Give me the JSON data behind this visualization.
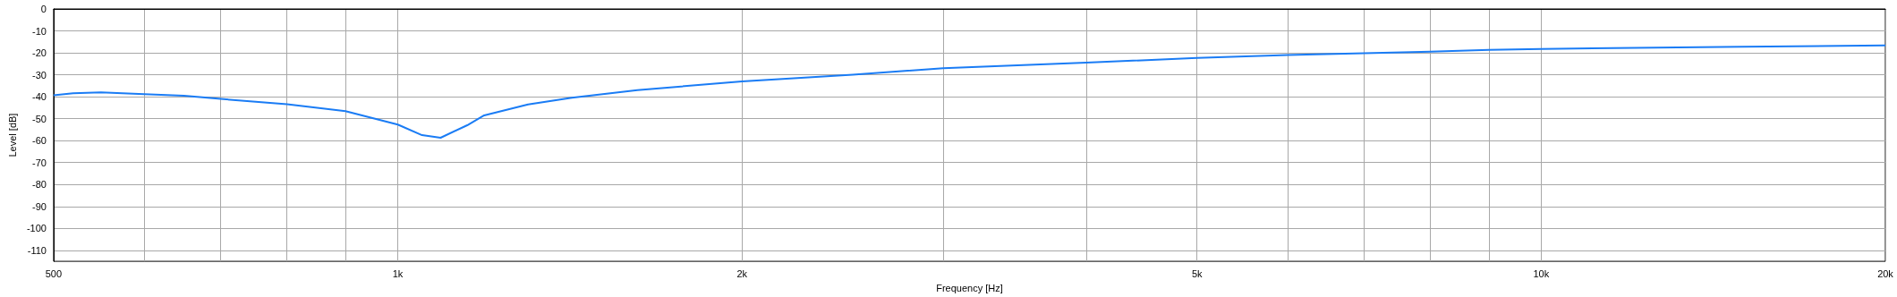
{
  "chart_data": {
    "type": "line",
    "xlabel": "Frequency [Hz]",
    "ylabel": "Level [dB]",
    "log": "x",
    "grid": true,
    "marker": "none",
    "line_style": "solid",
    "xlim": [
      500,
      20000
    ],
    "ylim": [
      -115,
      0
    ],
    "xticks": [
      {
        "value": 500,
        "label": "500"
      },
      {
        "value": 600,
        "label": null
      },
      {
        "value": 700,
        "label": null
      },
      {
        "value": 800,
        "label": null
      },
      {
        "value": 900,
        "label": null
      },
      {
        "value": 1000,
        "label": "1k"
      },
      {
        "value": 2000,
        "label": "2k"
      },
      {
        "value": 3000,
        "label": null
      },
      {
        "value": 4000,
        "label": null
      },
      {
        "value": 5000,
        "label": "5k"
      },
      {
        "value": 6000,
        "label": null
      },
      {
        "value": 7000,
        "label": null
      },
      {
        "value": 8000,
        "label": null
      },
      {
        "value": 9000,
        "label": null
      },
      {
        "value": 10000,
        "label": "10k"
      },
      {
        "value": 20000,
        "label": "20k"
      }
    ],
    "yticks": [
      0,
      -10,
      -20,
      -30,
      -40,
      -50,
      -60,
      -70,
      -80,
      -90,
      -100,
      -110
    ],
    "series": [
      {
        "color": "#1a7cf5",
        "x": [
          500,
          520,
          550,
          600,
          650,
          700,
          800,
          900,
          1000,
          1050,
          1090,
          1150,
          1190,
          1300,
          1420,
          1620,
          2000,
          2500,
          3000,
          4000,
          5000,
          6000,
          7000,
          8000,
          9000,
          10000,
          15000,
          20000
        ],
        "values": [
          -39.3,
          -38.4,
          -38,
          -38.8,
          -39.5,
          -41,
          -43.4,
          -46.6,
          -52.7,
          -57.5,
          -58.7,
          -53,
          -48.5,
          -43.5,
          -40.5,
          -37,
          -33,
          -30,
          -27,
          -24.5,
          -22.3,
          -21,
          -20.2,
          -19.5,
          -18.7,
          -18.2,
          -17.2,
          -16.6
        ]
      }
    ]
  }
}
